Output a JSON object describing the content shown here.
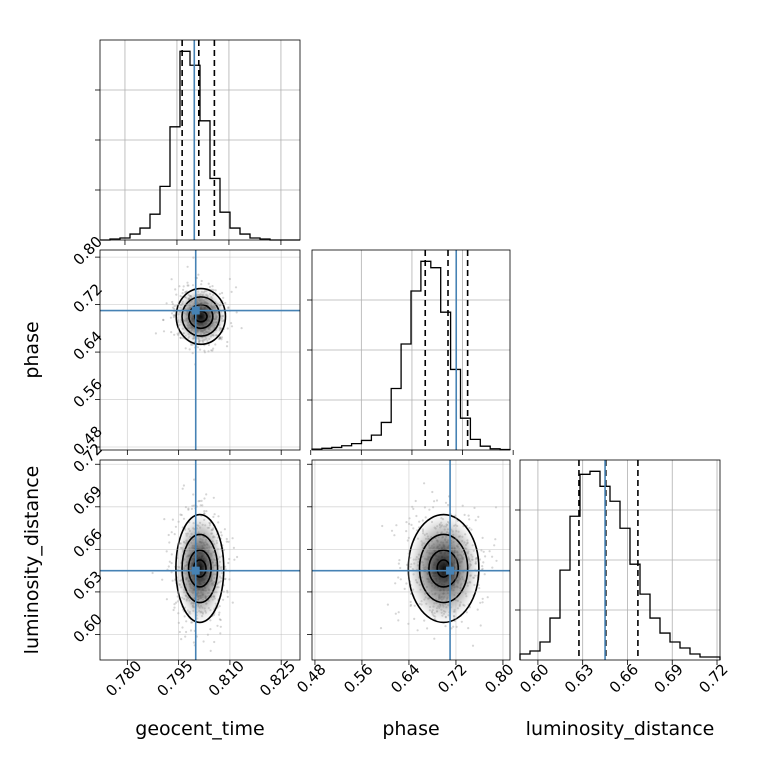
{
  "chart_data": {
    "type": "corner",
    "parameters": [
      "geocent_time",
      "phase",
      "luminosity_distance"
    ],
    "truths": {
      "geocent_time": 0.8,
      "phase": 0.71,
      "luminosity_distance": 0.645
    },
    "marginals": [
      {
        "parameter": "geocent_time",
        "quantiles": [
          0.7965,
          0.8013,
          0.8058
        ],
        "bins_range": [
          0.7728,
          0.8305
        ],
        "hist_values": [
          0,
          0.5,
          1,
          3,
          6,
          13,
          27,
          57,
          95,
          88,
          60,
          31,
          14,
          6,
          3,
          1,
          0.5,
          0,
          0,
          0
        ],
        "ticks": [
          0.78,
          0.795,
          0.81,
          0.825
        ],
        "tick_labels": [
          "0.780",
          "0.795",
          "0.810",
          "0.825"
        ]
      },
      {
        "parameter": "phase",
        "quantiles": [
          0.661,
          0.697,
          0.728
        ],
        "bins_range": [
          0.482,
          0.795
        ],
        "hist_values": [
          0.4,
          0.8,
          1.2,
          2,
          3,
          4.5,
          7,
          13,
          29,
          50,
          75,
          89,
          86,
          65,
          38,
          15,
          5,
          1.8,
          0.6,
          0.2
        ],
        "ticks": [
          0.48,
          0.56,
          0.64,
          0.72,
          0.8
        ],
        "tick_labels": [
          "0.48",
          "0.56",
          "0.64",
          "0.72",
          "0.80"
        ]
      },
      {
        "parameter": "luminosity_distance",
        "quantiles": [
          0.6275,
          0.6455,
          0.667
        ],
        "bins_range": [
          0.588,
          0.722
        ],
        "hist_values": [
          2,
          3,
          6,
          14,
          30,
          48,
          62,
          63,
          58,
          53,
          44,
          32,
          22,
          14,
          9,
          6,
          4,
          2,
          1,
          1
        ],
        "ticks": [
          0.6,
          0.63,
          0.66,
          0.69,
          0.72
        ],
        "tick_labels": [
          "0.60",
          "0.63",
          "0.66",
          "0.69",
          "0.72"
        ]
      }
    ],
    "joint": [
      {
        "x": "geocent_time",
        "y": "phase",
        "x_range": [
          0.772,
          0.8305
        ],
        "y_range": [
          0.475,
          0.812
        ],
        "center": [
          0.8015,
          0.7
        ],
        "contour_halfwidths": [
          [
            0.0018,
            0.009
          ],
          [
            0.0035,
            0.02
          ],
          [
            0.0055,
            0.033
          ],
          [
            0.0072,
            0.047
          ]
        ],
        "y_ticks": [
          0.48,
          0.56,
          0.64,
          0.72,
          0.8
        ],
        "y_tick_labels": [
          "0.48",
          "0.56",
          "0.64",
          "0.72",
          "0.80"
        ]
      },
      {
        "x": "geocent_time",
        "y": "luminosity_distance",
        "x_range": [
          0.772,
          0.8305
        ],
        "y_range": [
          0.582,
          0.723
        ],
        "center": [
          0.8012,
          0.6465
        ],
        "contour_halfwidths": [
          [
            0.0018,
            0.006
          ],
          [
            0.0033,
            0.013
          ],
          [
            0.0052,
            0.024
          ],
          [
            0.007,
            0.038
          ]
        ],
        "y_ticks": [
          0.6,
          0.63,
          0.66,
          0.69,
          0.72
        ],
        "y_tick_labels": [
          "0.60",
          "0.63",
          "0.66",
          "0.69",
          "0.72"
        ]
      },
      {
        "x": "phase",
        "y": "luminosity_distance",
        "x_range": [
          0.475,
          0.812
        ],
        "y_range": [
          0.582,
          0.723
        ],
        "center": [
          0.699,
          0.6465
        ],
        "contour_halfwidths": [
          [
            0.011,
            0.006
          ],
          [
            0.025,
            0.013
          ],
          [
            0.041,
            0.024
          ],
          [
            0.06,
            0.038
          ]
        ],
        "y_ticks": [
          0.6,
          0.63,
          0.66,
          0.69,
          0.72
        ],
        "y_tick_labels": [
          "0.60",
          "0.63",
          "0.66",
          "0.69",
          "0.72"
        ]
      }
    ],
    "xlabels": [
      "geocent_time",
      "phase",
      "luminosity_distance"
    ],
    "ylabels": [
      "",
      "phase",
      "luminosity_distance"
    ],
    "grid": true,
    "colors": {
      "truth": "#4682b4",
      "hist": "#000000",
      "points": "#888888"
    }
  }
}
